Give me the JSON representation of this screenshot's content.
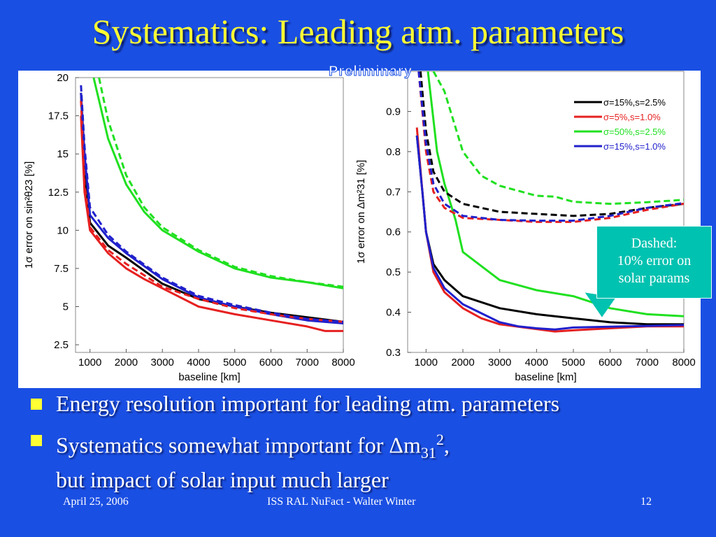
{
  "title": "Systematics: Leading atm. parameters",
  "figure": {
    "watermark": "Preliminary",
    "callout": {
      "line1": "Dashed:",
      "line2": "10% error on",
      "line3": "solar params"
    }
  },
  "bullets": [
    {
      "text": "Energy resolution important for leading atm. parameters"
    },
    {
      "text_pre": "Systematics somewhat important for ",
      "delta": "Δ",
      "m": "m",
      "sub": "31",
      "sup": "2",
      "text_post": ",",
      "line2": "but impact of solar input much larger"
    }
  ],
  "footer": {
    "date": "April 25, 2006",
    "center": "ISS RAL NuFact - Walter Winter",
    "page": "12"
  },
  "chart_data": [
    {
      "type": "line",
      "xlabel": "baseline [km]",
      "ylabel": "1σ error on sin²θ23 [%]",
      "xlim": [
        600,
        8000
      ],
      "ylim": [
        2,
        20
      ],
      "xticks": [
        1000,
        2000,
        3000,
        4000,
        5000,
        6000,
        7000,
        8000
      ],
      "yticks": [
        2.5,
        5,
        7.5,
        10,
        12.5,
        15,
        17.5,
        20
      ],
      "series": [
        {
          "color": "#000000",
          "dash": false,
          "points": [
            [
              750,
              19
            ],
            [
              850,
              14
            ],
            [
              1000,
              10.5
            ],
            [
              1500,
              9
            ],
            [
              2000,
              8.2
            ],
            [
              3000,
              6.5
            ],
            [
              4000,
              5.5
            ],
            [
              5000,
              5
            ],
            [
              6000,
              4.6
            ],
            [
              7000,
              4.3
            ],
            [
              8000,
              4
            ]
          ]
        },
        {
          "color": "#e62020",
          "dash": false,
          "points": [
            [
              750,
              17.5
            ],
            [
              850,
              12.5
            ],
            [
              1000,
              10
            ],
            [
              1500,
              8.5
            ],
            [
              2000,
              7.5
            ],
            [
              2500,
              6.8
            ],
            [
              3000,
              6.2
            ],
            [
              4000,
              5
            ],
            [
              5000,
              4.5
            ],
            [
              6000,
              4.1
            ],
            [
              7000,
              3.7
            ],
            [
              7500,
              3.4
            ],
            [
              8000,
              3.4
            ]
          ]
        },
        {
          "color": "#20e020",
          "dash": false,
          "points": [
            [
              1100,
              20
            ],
            [
              1500,
              16
            ],
            [
              2000,
              13
            ],
            [
              2500,
              11.2
            ],
            [
              3000,
              10
            ],
            [
              4000,
              8.6
            ],
            [
              5000,
              7.5
            ],
            [
              6000,
              6.9
            ],
            [
              7000,
              6.6
            ],
            [
              8000,
              6.2
            ]
          ]
        },
        {
          "color": "#2020cc",
          "dash": false,
          "points": [
            [
              750,
              19
            ],
            [
              850,
              15
            ],
            [
              1000,
              11
            ],
            [
              1500,
              9.5
            ],
            [
              2000,
              8.5
            ],
            [
              3000,
              6.8
            ],
            [
              4000,
              5.6
            ],
            [
              5000,
              5
            ],
            [
              6000,
              4.5
            ],
            [
              7000,
              4.1
            ],
            [
              8000,
              3.9
            ]
          ]
        },
        {
          "color": "#e62020",
          "dash": true,
          "points": [
            [
              750,
              18.5
            ],
            [
              850,
              13
            ],
            [
              1000,
              10.2
            ],
            [
              1500,
              8.7
            ],
            [
              2000,
              7.8
            ],
            [
              3000,
              6.3
            ],
            [
              4000,
              5.5
            ],
            [
              5000,
              4.9
            ],
            [
              6000,
              4.5
            ],
            [
              7000,
              4.2
            ],
            [
              8000,
              4
            ]
          ]
        },
        {
          "color": "#20e020",
          "dash": true,
          "points": [
            [
              1250,
              20
            ],
            [
              1500,
              17.2
            ],
            [
              2000,
              13.6
            ],
            [
              2500,
              11.5
            ],
            [
              3000,
              10.2
            ],
            [
              4000,
              8.7
            ],
            [
              5000,
              7.6
            ],
            [
              6000,
              7
            ],
            [
              7000,
              6.6
            ],
            [
              8000,
              6.3
            ]
          ]
        },
        {
          "color": "#2020cc",
          "dash": true,
          "points": [
            [
              750,
              19.5
            ],
            [
              850,
              15.5
            ],
            [
              1000,
              11.5
            ],
            [
              1500,
              9.7
            ],
            [
              2000,
              8.6
            ],
            [
              3000,
              6.9
            ],
            [
              4000,
              5.7
            ],
            [
              5000,
              5.1
            ],
            [
              6000,
              4.6
            ],
            [
              7000,
              4.2
            ],
            [
              8000,
              4
            ]
          ]
        }
      ]
    },
    {
      "type": "line",
      "xlabel": "baseline [km]",
      "ylabel": "1σ error on Δm²31 [%]",
      "xlim": [
        500,
        8000
      ],
      "ylim": [
        0.3,
        1.0
      ],
      "xticks": [
        1000,
        2000,
        3000,
        4000,
        5000,
        6000,
        7000,
        8000
      ],
      "yticks": [
        0.3,
        0.4,
        0.5,
        0.6,
        0.7,
        0.8,
        0.9
      ],
      "legend": "top-right",
      "legend_entries": [
        {
          "label": "σ=15%,s=2.5%",
          "color": "#000000"
        },
        {
          "label": "σ=5%,s=1.0%",
          "color": "#e62020"
        },
        {
          "label": "σ=50%,s=2.5%",
          "color": "#20e020"
        },
        {
          "label": "σ=15%,s=1.0%",
          "color": "#2020cc"
        }
      ],
      "series": [
        {
          "color": "#000000",
          "dash": false,
          "points": [
            [
              750,
              0.84
            ],
            [
              900,
              0.7
            ],
            [
              1000,
              0.6
            ],
            [
              1200,
              0.52
            ],
            [
              1500,
              0.48
            ],
            [
              2000,
              0.44
            ],
            [
              3000,
              0.41
            ],
            [
              4000,
              0.395
            ],
            [
              5000,
              0.385
            ],
            [
              6000,
              0.375
            ],
            [
              7000,
              0.37
            ],
            [
              8000,
              0.37
            ]
          ]
        },
        {
          "color": "#e62020",
          "dash": false,
          "points": [
            [
              750,
              0.86
            ],
            [
              900,
              0.7
            ],
            [
              1000,
              0.6
            ],
            [
              1200,
              0.5
            ],
            [
              1500,
              0.45
            ],
            [
              2000,
              0.41
            ],
            [
              2500,
              0.385
            ],
            [
              3000,
              0.37
            ],
            [
              4000,
              0.358
            ],
            [
              4500,
              0.352
            ],
            [
              5000,
              0.355
            ],
            [
              6000,
              0.36
            ],
            [
              7000,
              0.365
            ],
            [
              8000,
              0.365
            ]
          ]
        },
        {
          "color": "#20e020",
          "dash": false,
          "points": [
            [
              1050,
              1.0
            ],
            [
              1300,
              0.8
            ],
            [
              1500,
              0.72
            ],
            [
              1800,
              0.63
            ],
            [
              2000,
              0.55
            ],
            [
              3000,
              0.48
            ],
            [
              4000,
              0.455
            ],
            [
              5000,
              0.44
            ],
            [
              6000,
              0.41
            ],
            [
              7000,
              0.395
            ],
            [
              8000,
              0.39
            ]
          ]
        },
        {
          "color": "#2020cc",
          "dash": false,
          "points": [
            [
              750,
              0.84
            ],
            [
              900,
              0.7
            ],
            [
              1000,
              0.6
            ],
            [
              1200,
              0.51
            ],
            [
              1500,
              0.46
            ],
            [
              2000,
              0.42
            ],
            [
              3000,
              0.375
            ],
            [
              3500,
              0.365
            ],
            [
              4000,
              0.36
            ],
            [
              4500,
              0.357
            ],
            [
              5000,
              0.362
            ],
            [
              6000,
              0.364
            ],
            [
              7000,
              0.366
            ],
            [
              8000,
              0.368
            ]
          ]
        },
        {
          "color": "#000000",
          "dash": true,
          "points": [
            [
              850,
              1.0
            ],
            [
              1000,
              0.85
            ],
            [
              1200,
              0.75
            ],
            [
              1500,
              0.7
            ],
            [
              2000,
              0.67
            ],
            [
              3000,
              0.65
            ],
            [
              4000,
              0.645
            ],
            [
              5000,
              0.64
            ],
            [
              6000,
              0.645
            ],
            [
              7000,
              0.66
            ],
            [
              8000,
              0.67
            ]
          ]
        },
        {
          "color": "#e62020",
          "dash": true,
          "points": [
            [
              800,
              1.0
            ],
            [
              1000,
              0.8
            ],
            [
              1200,
              0.7
            ],
            [
              1500,
              0.66
            ],
            [
              2000,
              0.635
            ],
            [
              3000,
              0.63
            ],
            [
              4000,
              0.625
            ],
            [
              5000,
              0.625
            ],
            [
              6000,
              0.635
            ],
            [
              7000,
              0.655
            ],
            [
              8000,
              0.67
            ]
          ]
        },
        {
          "color": "#20e020",
          "dash": true,
          "points": [
            [
              1200,
              1.0
            ],
            [
              1500,
              0.95
            ],
            [
              2000,
              0.8
            ],
            [
              2500,
              0.74
            ],
            [
              3000,
              0.715
            ],
            [
              4000,
              0.69
            ],
            [
              4500,
              0.688
            ],
            [
              5000,
              0.675
            ],
            [
              6000,
              0.67
            ],
            [
              7000,
              0.674
            ],
            [
              8000,
              0.68
            ]
          ]
        },
        {
          "color": "#2020cc",
          "dash": true,
          "points": [
            [
              800,
              1.0
            ],
            [
              1000,
              0.82
            ],
            [
              1200,
              0.72
            ],
            [
              1500,
              0.67
            ],
            [
              2000,
              0.64
            ],
            [
              3000,
              0.63
            ],
            [
              4000,
              0.628
            ],
            [
              5000,
              0.628
            ],
            [
              6000,
              0.64
            ],
            [
              7000,
              0.66
            ],
            [
              8000,
              0.672
            ]
          ]
        }
      ]
    }
  ]
}
